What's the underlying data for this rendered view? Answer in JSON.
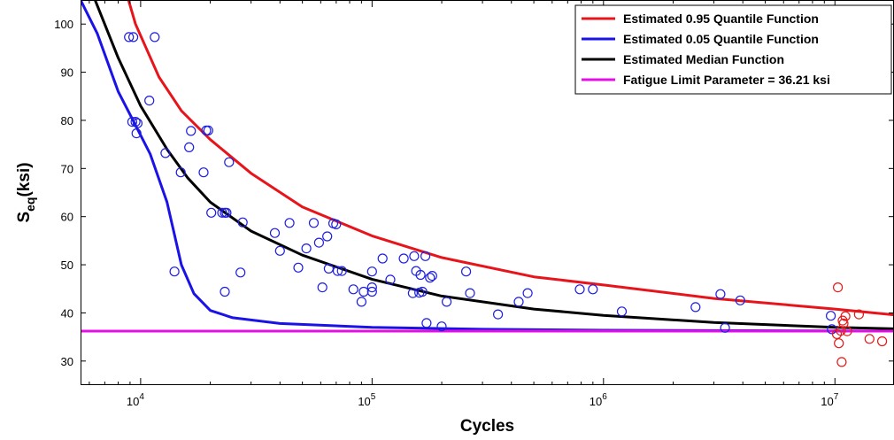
{
  "chart_data": {
    "type": "scatter",
    "xlabel": "Cycles",
    "ylabel_main": "S",
    "ylabel_sub": "eq",
    "ylabel_suffix": "(ksi)",
    "x_scale": "log",
    "xlim": [
      5500,
      18000000
    ],
    "ylim": [
      25,
      105
    ],
    "grid": false,
    "legend_position": "top-right",
    "x_tick_labels": [
      {
        "value": 10000,
        "base": "10",
        "exp": "4"
      },
      {
        "value": 100000,
        "base": "10",
        "exp": "5"
      },
      {
        "value": 1000000,
        "base": "10",
        "exp": "6"
      },
      {
        "value": 10000000,
        "base": "10",
        "exp": "7"
      }
    ],
    "y_ticks": [
      30,
      40,
      50,
      60,
      70,
      80,
      90,
      100
    ],
    "series": [
      {
        "name": "Estimated 0.95 Quantile Function",
        "kind": "line",
        "color": "#e8141b",
        "points": [
          [
            8500,
            108
          ],
          [
            9500,
            100
          ],
          [
            12000,
            89
          ],
          [
            15000,
            82
          ],
          [
            20000,
            76
          ],
          [
            30000,
            69
          ],
          [
            50000,
            62
          ],
          [
            100000,
            56
          ],
          [
            200000,
            51.5
          ],
          [
            500000,
            47.5
          ],
          [
            1000000,
            45.8
          ],
          [
            3000000,
            43
          ],
          [
            10000000,
            40.8
          ],
          [
            18000000,
            39.6
          ]
        ]
      },
      {
        "name": "Estimated 0.05 Quantile Function",
        "kind": "line",
        "color": "#1a12e6",
        "points": [
          [
            5500,
            105
          ],
          [
            6500,
            98
          ],
          [
            8000,
            86
          ],
          [
            9500,
            79
          ],
          [
            11000,
            73
          ],
          [
            13000,
            63
          ],
          [
            15000,
            50
          ],
          [
            17000,
            44
          ],
          [
            20000,
            40.5
          ],
          [
            25000,
            39
          ],
          [
            40000,
            37.8
          ],
          [
            100000,
            37
          ],
          [
            300000,
            36.6
          ],
          [
            1000000,
            36.4
          ],
          [
            10000000,
            36.25
          ],
          [
            18000000,
            36.22
          ]
        ]
      },
      {
        "name": "Estimated Median Function",
        "kind": "line",
        "color": "#000000",
        "points": [
          [
            6000,
            108
          ],
          [
            8000,
            93
          ],
          [
            10000,
            83
          ],
          [
            13000,
            74
          ],
          [
            16000,
            68
          ],
          [
            20000,
            63
          ],
          [
            30000,
            57
          ],
          [
            50000,
            52
          ],
          [
            100000,
            47
          ],
          [
            200000,
            43.5
          ],
          [
            500000,
            40.8
          ],
          [
            1000000,
            39.5
          ],
          [
            3000000,
            38
          ],
          [
            10000000,
            37
          ],
          [
            18000000,
            36.7
          ]
        ]
      },
      {
        "name": "Fatigue Limit Parameter = 36.21 ksi",
        "kind": "line",
        "color": "#e40fe6",
        "points": [
          [
            5500,
            36.21
          ],
          [
            18000000,
            36.21
          ]
        ]
      }
    ],
    "scatter": [
      {
        "color": "#1f1fe0",
        "points": [
          [
            8900,
            97.3
          ],
          [
            9300,
            97.3
          ],
          [
            11500,
            97.3
          ],
          [
            9200,
            79.7
          ],
          [
            9500,
            79.7
          ],
          [
            9700,
            79.4
          ],
          [
            9600,
            77.3
          ],
          [
            10900,
            84.1
          ],
          [
            12800,
            73.2
          ],
          [
            16500,
            77.8
          ],
          [
            16200,
            74.4
          ],
          [
            19200,
            77.9
          ],
          [
            19600,
            77.9
          ],
          [
            18700,
            69.2
          ],
          [
            14900,
            69.2
          ],
          [
            24100,
            71.3
          ],
          [
            20200,
            60.8
          ],
          [
            22500,
            60.8
          ],
          [
            23100,
            60.8
          ],
          [
            23500,
            60.8
          ],
          [
            27600,
            58.8
          ],
          [
            14000,
            48.6
          ],
          [
            23100,
            44.4
          ],
          [
            27000,
            48.4
          ],
          [
            38000,
            56.6
          ],
          [
            40000,
            52.9
          ],
          [
            44000,
            58.7
          ],
          [
            48000,
            49.4
          ],
          [
            52000,
            53.4
          ],
          [
            56000,
            58.7
          ],
          [
            59000,
            54.6
          ],
          [
            61000,
            45.3
          ],
          [
            64000,
            55.9
          ],
          [
            65000,
            49.2
          ],
          [
            68000,
            58.6
          ],
          [
            70000,
            58.4
          ],
          [
            71000,
            48.7
          ],
          [
            74000,
            48.7
          ],
          [
            83000,
            44.9
          ],
          [
            90000,
            42.3
          ],
          [
            92000,
            44.4
          ],
          [
            100000,
            48.6
          ],
          [
            100000,
            45.3
          ],
          [
            100000,
            44.4
          ],
          [
            111000,
            51.3
          ],
          [
            120000,
            46.9
          ],
          [
            137000,
            51.3
          ],
          [
            150000,
            44.1
          ],
          [
            152000,
            51.8
          ],
          [
            155000,
            48.7
          ],
          [
            160000,
            44.2
          ],
          [
            162000,
            47.9
          ],
          [
            165000,
            44.4
          ],
          [
            170000,
            51.8
          ],
          [
            172000,
            37.9
          ],
          [
            178000,
            47.3
          ],
          [
            182000,
            47.7
          ],
          [
            200000,
            37.2
          ],
          [
            210000,
            42.3
          ],
          [
            255000,
            48.6
          ],
          [
            265000,
            44.1
          ],
          [
            350000,
            39.7
          ],
          [
            430000,
            42.3
          ],
          [
            470000,
            44.1
          ],
          [
            790000,
            44.9
          ],
          [
            900000,
            44.9
          ],
          [
            1200000,
            40.3
          ],
          [
            2500000,
            41.2
          ],
          [
            3200000,
            43.9
          ],
          [
            3350000,
            36.9
          ],
          [
            3900000,
            42.6
          ],
          [
            9600000,
            39.4
          ],
          [
            9700000,
            36.6
          ]
        ]
      },
      {
        "color": "#e21a1a",
        "points": [
          [
            10300000,
            45.3
          ],
          [
            10400000,
            33.7
          ],
          [
            10600000,
            36.3
          ],
          [
            10700000,
            29.8
          ],
          [
            10800000,
            38.4
          ],
          [
            10900000,
            37.8
          ],
          [
            11100000,
            39.3
          ],
          [
            11300000,
            36.2
          ],
          [
            12700000,
            39.7
          ],
          [
            14100000,
            34.6
          ],
          [
            16000000,
            34.1
          ],
          [
            10200000,
            35.6
          ]
        ]
      }
    ]
  }
}
